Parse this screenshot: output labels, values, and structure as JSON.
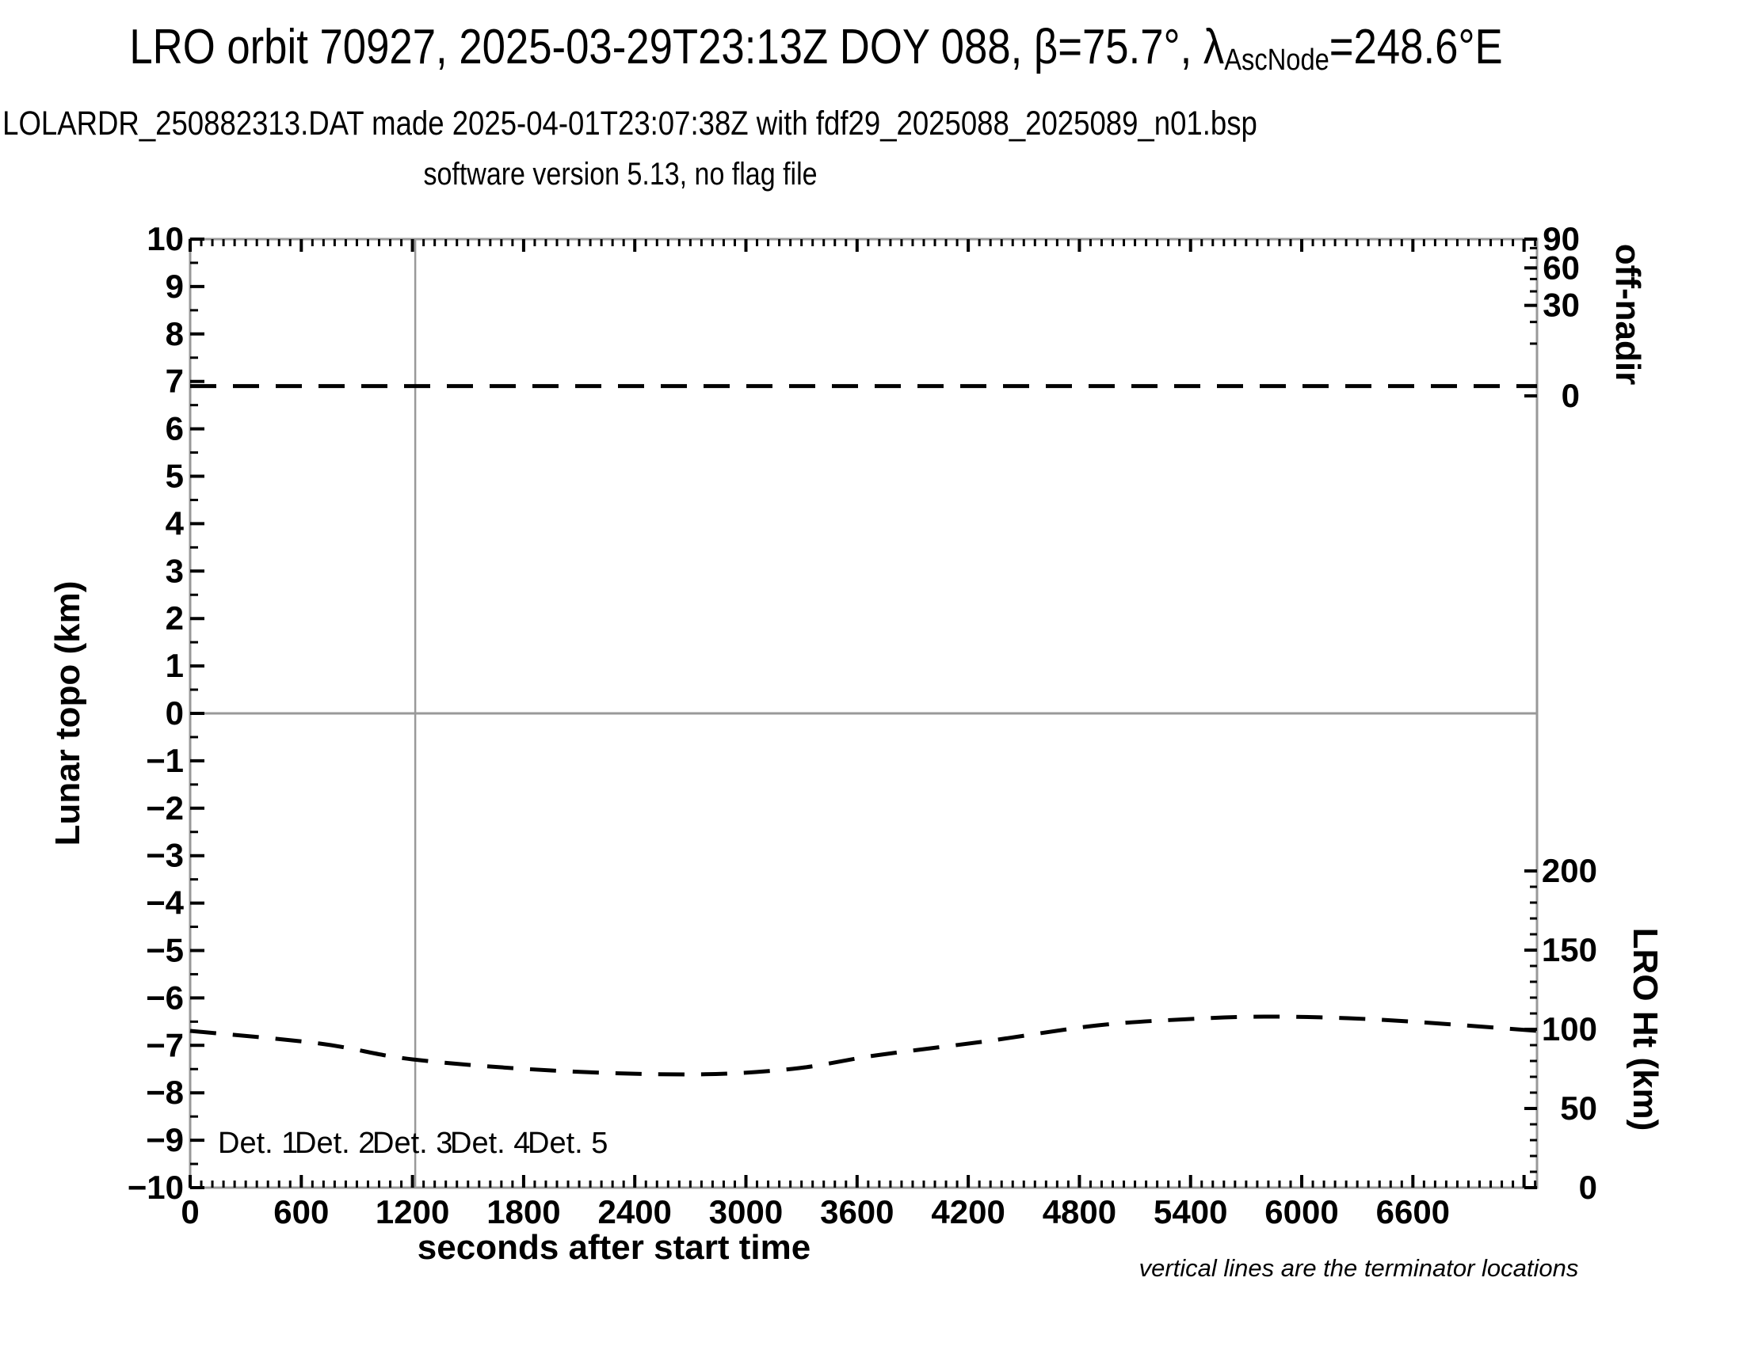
{
  "chart_data": {
    "type": "line",
    "title_parts": {
      "prefix": "LRO orbit 70927, 2025-03-29T23:13Z DOY 088, β=75.7°, λ",
      "subscript": "AscNode",
      "suffix": "=248.6°E"
    },
    "subtitle": "LOLARDR_250882313.DAT made 2025-04-01T23:07:38Z with fdf29_2025088_2025089_n01.bsp",
    "version_line": "software version 5.13, no flag file",
    "xlabel": "seconds after start time",
    "ylabel_left": "Lunar topo (km)",
    "ylabel_right_top": "off-nadir",
    "ylabel_right_bottom": "LRO Ht (km)",
    "footnote": "vertical lines are the terminator locations",
    "x_axis": {
      "min": 0,
      "max": 7270,
      "major_tick_step": 600,
      "minor_tick_step": 60,
      "tick_labels": [
        "0",
        "600",
        "1200",
        "1800",
        "2400",
        "3000",
        "3600",
        "4200",
        "4800",
        "5400",
        "6000",
        "6600"
      ]
    },
    "y_left_axis": {
      "min": -10,
      "max": 10,
      "major_tick_step": 1,
      "minor_tick_step": 0.5
    },
    "y_right_top_axis": {
      "unit": "degrees off-nadir",
      "major_ticks": [
        0,
        30,
        60,
        90
      ],
      "minor_tick_step": 10,
      "scale": "sqrt-compressed"
    },
    "y_right_bottom_axis": {
      "min": 0,
      "max": 200,
      "major_tick_step": 50,
      "minor_tick_step": 10
    },
    "terminator_lines_s": [
      1215
    ],
    "series": [
      {
        "name": "spacecraft off-nadir angle",
        "axis": "right-top",
        "style": "dashed",
        "color": "#000000",
        "points_s_deg": [
          [
            0,
            0.35
          ],
          [
            7270,
            0.35
          ]
        ]
      },
      {
        "name": "LRO height",
        "axis": "right-bottom",
        "style": "dashed",
        "color": "#000000",
        "points_s_km": [
          [
            0,
            99
          ],
          [
            700,
            91
          ],
          [
            1200,
            81
          ],
          [
            1950,
            74
          ],
          [
            2700,
            71.5
          ],
          [
            3250,
            75
          ],
          [
            3700,
            83.5
          ],
          [
            4300,
            92.5
          ],
          [
            4900,
            102.5
          ],
          [
            5400,
            106.5
          ],
          [
            5800,
            108
          ],
          [
            6250,
            107
          ],
          [
            6700,
            104
          ],
          [
            7270,
            99
          ]
        ]
      }
    ],
    "legend": [
      {
        "label": "Det. 1",
        "color": "#000000"
      },
      {
        "label": "Det. 2",
        "color": "#1a1aff"
      },
      {
        "label": "Det. 3",
        "color": "#00e000"
      },
      {
        "label": "Det. 4",
        "color": "#ffa500"
      },
      {
        "label": "Det. 5",
        "color": "#ff0000"
      }
    ],
    "colors": {
      "axis_frame": "#999999",
      "reference_lines": "#999999",
      "ticks": "#000000",
      "curves": "#000000"
    }
  }
}
